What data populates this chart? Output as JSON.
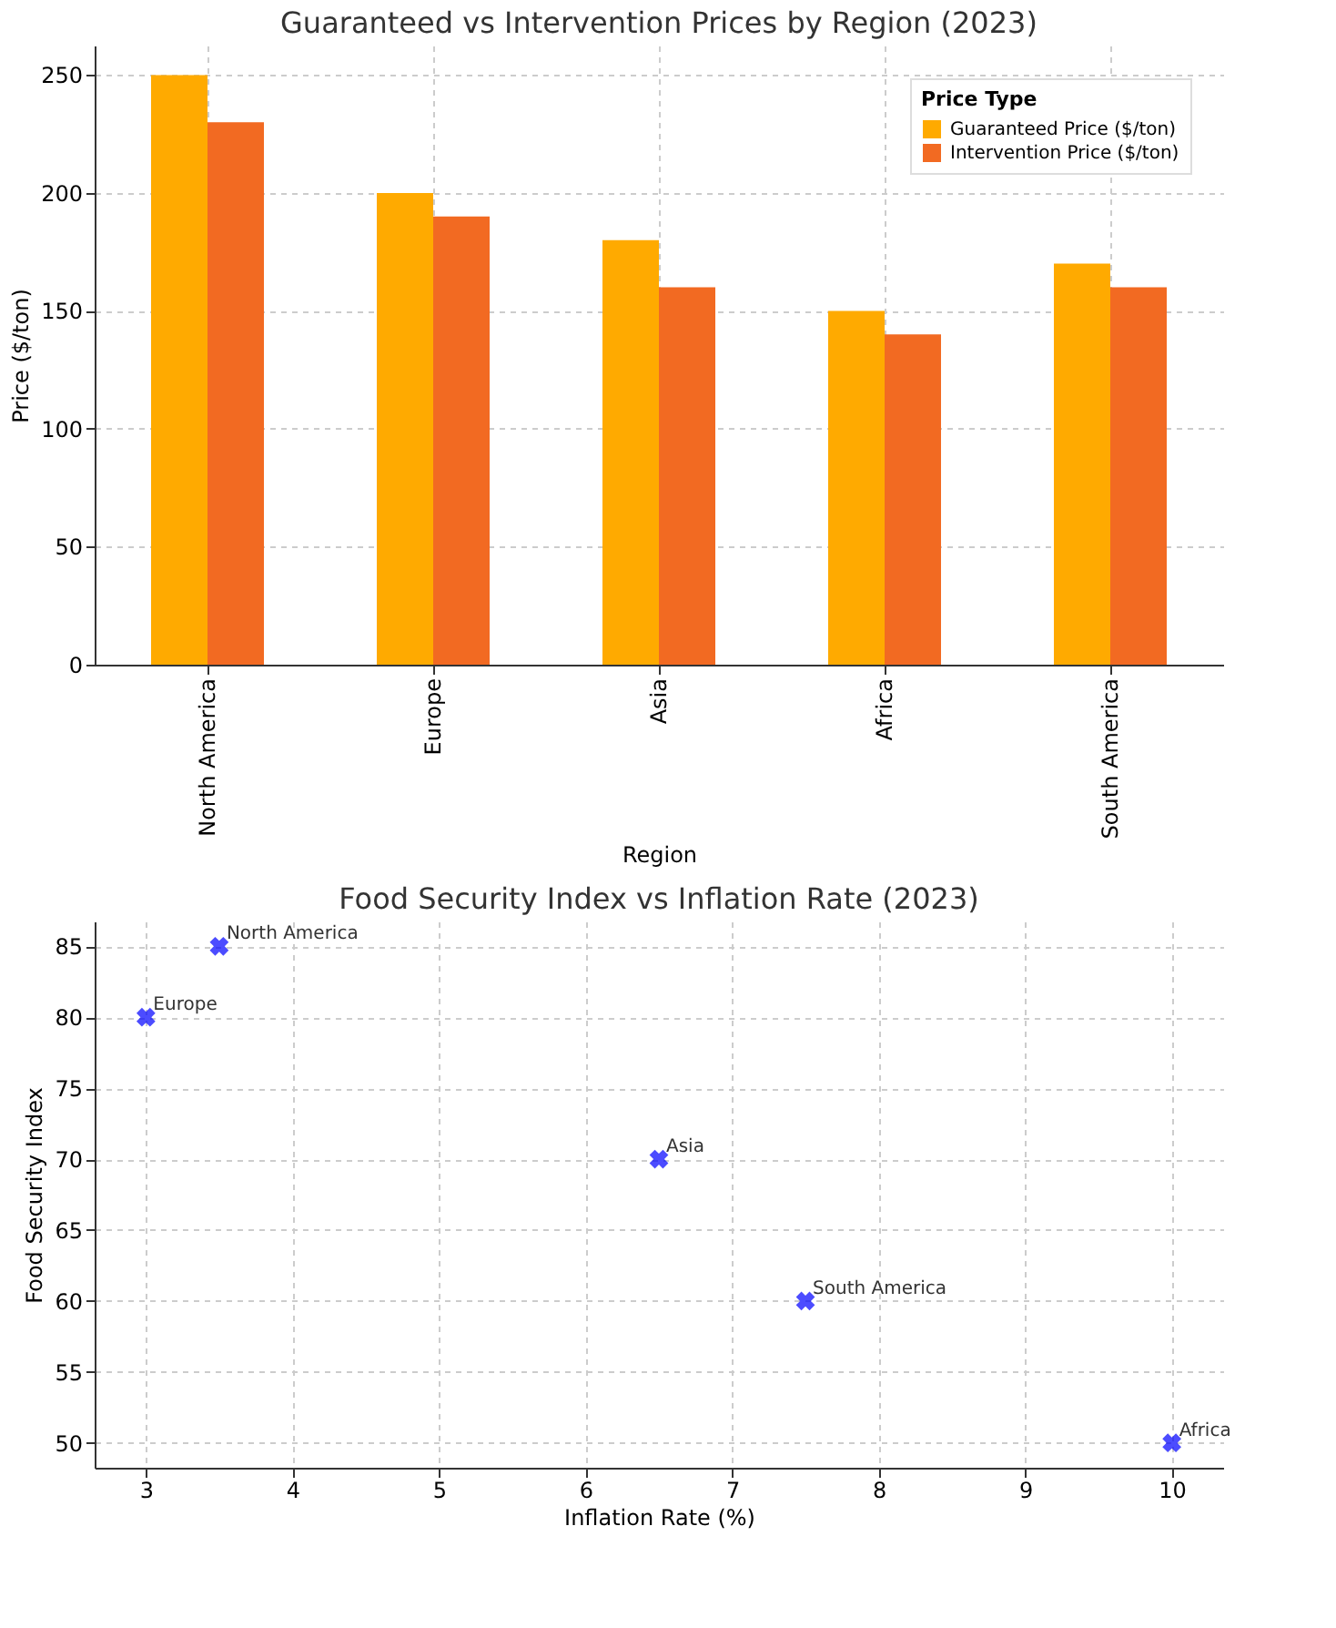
{
  "chart_data": [
    {
      "type": "bar",
      "title": "Guaranteed vs Intervention Prices by Region (2023)",
      "xlabel": "Region",
      "ylabel": "Price ($/ton)",
      "categories": [
        "North America",
        "Europe",
        "Asia",
        "Africa",
        "South America"
      ],
      "series": [
        {
          "name": "Guaranteed Price ($/ton)",
          "color": "#ffaa00",
          "values": [
            250,
            200,
            180,
            150,
            170
          ]
        },
        {
          "name": "Intervention Price ($/ton)",
          "color": "#f26a22",
          "values": [
            230,
            190,
            160,
            140,
            160
          ]
        }
      ],
      "ylim": [
        0,
        262.5
      ],
      "yticks": [
        0,
        50,
        100,
        150,
        200,
        250
      ],
      "grid": true,
      "legend": "top right",
      "legend_title": "Price Type"
    },
    {
      "type": "scatter",
      "title": "Food Security Index vs Inflation Rate (2023)",
      "xlabel": "Inflation Rate (%)",
      "ylabel": "Food Security Index",
      "x": [
        3.5,
        3.0,
        6.5,
        10.0,
        7.5
      ],
      "series": [
        {
          "color": "#0000ff",
          "values": [
            85,
            80,
            70,
            50,
            60
          ]
        }
      ],
      "marker": "cross",
      "annotations": [
        {
          "text": "North America",
          "x": 3.5,
          "y": 85
        },
        {
          "text": "Europe",
          "x": 3.0,
          "y": 80
        },
        {
          "text": "Asia",
          "x": 6.5,
          "y": 70
        },
        {
          "text": "Africa",
          "x": 10.0,
          "y": 50
        },
        {
          "text": "South America",
          "x": 7.5,
          "y": 60
        }
      ],
      "xlim": [
        2.65,
        10.35
      ],
      "xticks": [
        3,
        4,
        5,
        6,
        7,
        8,
        9,
        10
      ],
      "ylim": [
        48.25,
        86.75
      ],
      "yticks": [
        50,
        55,
        60,
        65,
        70,
        75,
        80,
        85
      ],
      "grid": true
    }
  ]
}
